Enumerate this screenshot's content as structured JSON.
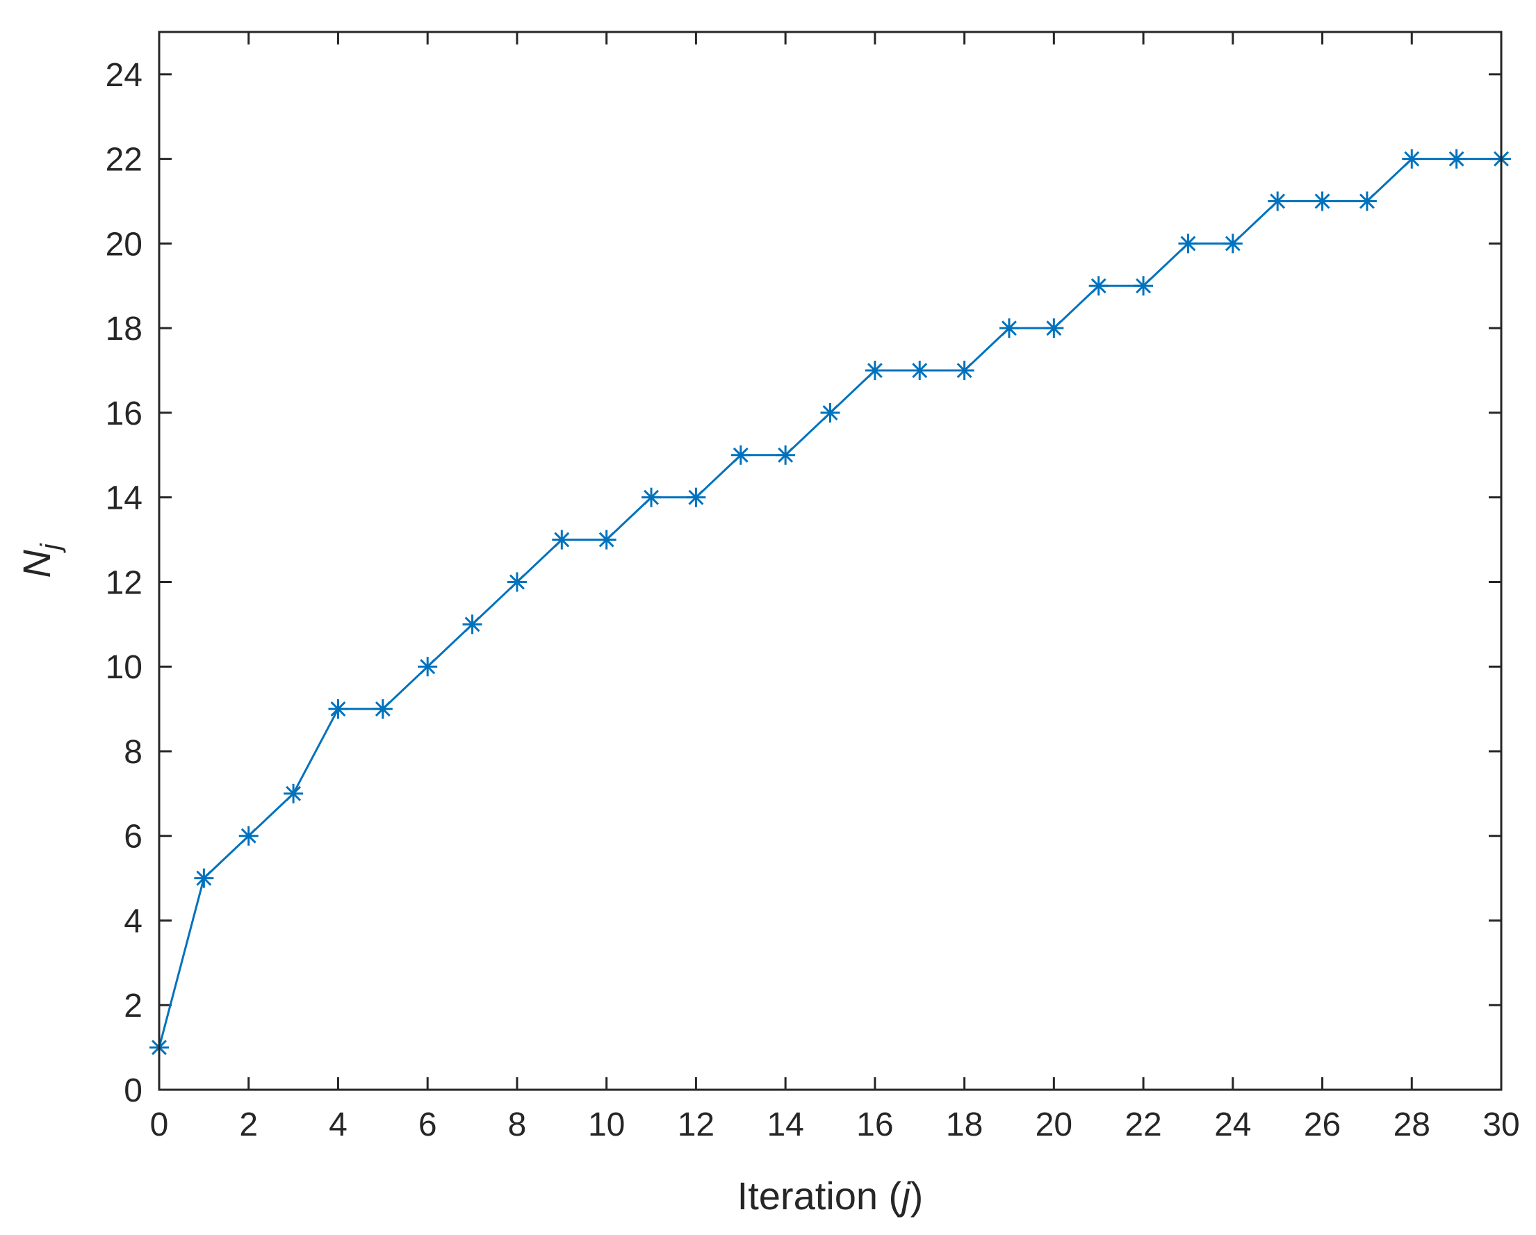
{
  "chart_data": {
    "type": "line",
    "xlabel": "Iteration (j)",
    "xlabel_parts": {
      "prefix": "Iteration (",
      "var": "j",
      "suffix": ")"
    },
    "ylabel": "N_j",
    "ylabel_parts": {
      "base": "N",
      "sub": "j"
    },
    "xlim": [
      0,
      30
    ],
    "ylim": [
      0,
      25
    ],
    "xticks": [
      0,
      2,
      4,
      6,
      8,
      10,
      12,
      14,
      16,
      18,
      20,
      22,
      24,
      26,
      28,
      30
    ],
    "yticks": [
      0,
      2,
      4,
      6,
      8,
      10,
      12,
      14,
      16,
      18,
      20,
      22,
      24
    ],
    "grid": false,
    "box": true,
    "marker": "asterisk",
    "color": "#0072BD",
    "series": [
      {
        "x": [
          0,
          1,
          2,
          3,
          4,
          5,
          6,
          7,
          8,
          9,
          10,
          11,
          12,
          13,
          14,
          15,
          16,
          17,
          18,
          19,
          20,
          21,
          22,
          23,
          24,
          25,
          26,
          27,
          28,
          29,
          30
        ],
        "y": [
          1,
          5,
          6,
          7,
          9,
          9,
          10,
          11,
          12,
          13,
          13,
          14,
          14,
          15,
          15,
          16,
          17,
          17,
          17,
          18,
          18,
          19,
          19,
          20,
          20,
          21,
          21,
          21,
          22,
          22,
          22
        ]
      }
    ]
  }
}
